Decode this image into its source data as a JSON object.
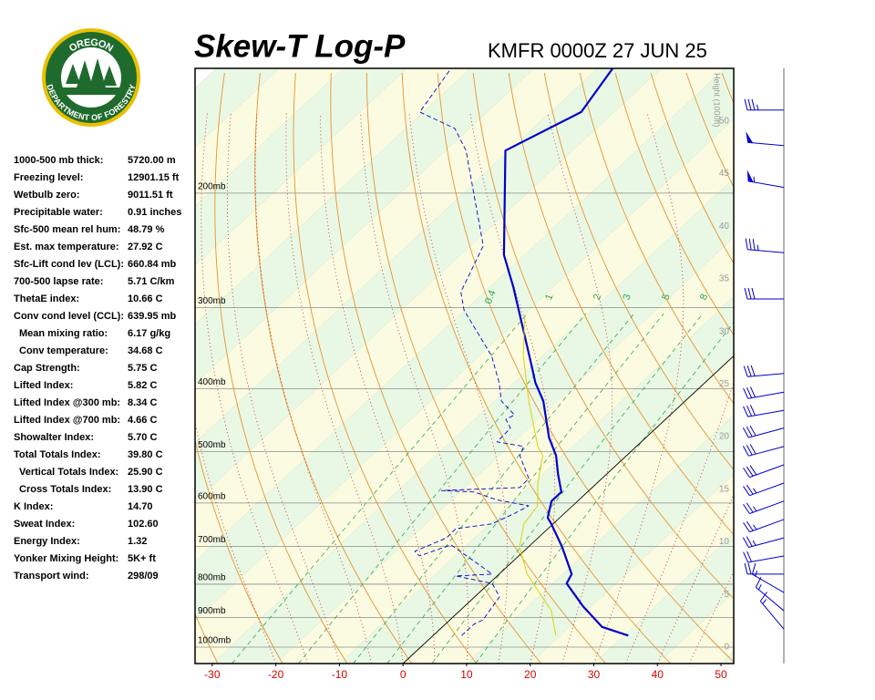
{
  "logo": {
    "top": "OREGON",
    "bottom": "DEPARTMENT OF FORESTRY"
  },
  "indices": [
    [
      "1000-500 mb thick:",
      "5720.00 m"
    ],
    [
      "Freezing level:",
      "12901.15 ft"
    ],
    [
      "Wetbulb zero:",
      "9011.51 ft"
    ],
    [
      "Precipitable water:",
      "0.91 inches"
    ],
    [
      "Sfc-500 mean rel hum:",
      "48.79 %"
    ],
    [
      "Est. max temperature:",
      "27.92 C"
    ],
    [
      "Sfc-Lift cond lev (LCL):",
      "660.84 mb"
    ],
    [
      "700-500 lapse rate:",
      "5.71 C/km"
    ],
    [
      "ThetaE index:",
      "10.66 C"
    ],
    [
      "Conv cond level (CCL):",
      "639.95 mb"
    ],
    [
      "Mean mixing ratio:",
      "6.17 g/kg"
    ],
    [
      "Conv temperature:",
      "34.68 C"
    ],
    [
      "Cap Strength:",
      "5.75 C"
    ],
    [
      "Lifted Index:",
      "5.82 C"
    ],
    [
      "Lifted Index @300 mb:",
      "8.34 C"
    ],
    [
      "Lifted Index @700 mb:",
      "4.66 C"
    ],
    [
      "Showalter Index:",
      "5.70 C"
    ],
    [
      "Total Totals Index:",
      "39.80 C"
    ],
    [
      "Vertical Totals Index:",
      "25.90 C"
    ],
    [
      "Cross Totals Index:",
      "13.90 C"
    ],
    [
      "K Index:",
      "14.70"
    ],
    [
      "Sweat Index:",
      "102.60"
    ],
    [
      "Energy Index:",
      "1.32"
    ],
    [
      "Yonker Mixing Height:",
      "5K+ ft"
    ],
    [
      "Transport wind:",
      "298/09"
    ]
  ],
  "chart_data": {
    "type": "skewt",
    "title": "Skew-T Log-P",
    "subtitle": "KMFR 0000Z 27 JUN 25",
    "xlim": [
      -32.7,
      52.0
    ],
    "xticks": [
      -30,
      -20,
      -10,
      0,
      10,
      20,
      30,
      40,
      50
    ],
    "ylim": [
      1060,
      128.5
    ],
    "log_y": true,
    "yticks": [
      {
        "value": 200,
        "label": "200mb"
      },
      {
        "value": 300,
        "label": "300mb"
      },
      {
        "value": 400,
        "label": "400mb"
      },
      {
        "value": 500,
        "label": "500mb"
      },
      {
        "value": 600,
        "label": "600mb"
      },
      {
        "value": 700,
        "label": "700mb"
      },
      {
        "value": 800,
        "label": "800mb"
      },
      {
        "value": 900,
        "label": "900mb"
      },
      {
        "value": 1000,
        "label": "1000mb"
      }
    ],
    "y2label": "Height (1000ft)",
    "y2lim": [
      -1.56,
      55.0
    ],
    "y2ticks": [
      0,
      5,
      10,
      15,
      20,
      25,
      30,
      35,
      40,
      45,
      50
    ],
    "mixing_ratios": [
      0.4,
      1,
      2,
      3,
      5,
      8
    ],
    "series": [
      {
        "color": "#0000cc",
        "dash": "none",
        "width": 2.2,
        "pressure": [
          960,
          931,
          865,
          798,
          772,
          701,
          646,
          632,
          596,
          577,
          541,
          507,
          476,
          418,
          392,
          367,
          303,
          279,
          249,
          172,
          150,
          128
        ],
        "values": [
          30.7,
          25.1,
          18.6,
          12.2,
          11.4,
          5.3,
          -0.3,
          -1.9,
          -4.1,
          -4.1,
          -7.7,
          -11.1,
          -15.2,
          -22.3,
          -26.6,
          -30.4,
          -41.5,
          -46.3,
          -53.2,
          -70.6,
          -65.2,
          -67.7
        ]
      },
      {
        "color": "#0000cc",
        "dash": "5 3",
        "width": 0.9,
        "pressure": [
          960,
          922,
          908,
          837,
          798,
          777,
          772,
          712,
          696,
          724,
          712,
          679,
          657,
          646,
          622,
          606,
          593,
          577,
          574,
          568,
          550,
          507,
          491,
          483,
          460,
          446,
          439,
          418,
          392,
          356,
          303,
          284,
          241,
          172,
          159,
          150,
          128
        ],
        "values": [
          4.5,
          4.5,
          5.2,
          3.9,
          0.5,
          -6.5,
          -1.1,
          -10.0,
          -12.5,
          -15.6,
          -17.1,
          -14.4,
          -14.5,
          -9.6,
          -7.8,
          -6.9,
          -13.0,
          -17.8,
          -23.2,
          -11.4,
          -11.5,
          -16.8,
          -17.7,
          -22.7,
          -22.9,
          -25.1,
          -24.5,
          -28.9,
          -32.3,
          -38.1,
          -50.1,
          -53.7,
          -58.0,
          -76.8,
          -82.3,
          -90.6,
          -93.1
        ]
      },
      {
        "color": "#e0d000",
        "dash": "none",
        "width": 1,
        "pressure": [
          960,
          879,
          772,
          701,
          646,
          606,
          559,
          507,
          491,
          418,
          356,
          312
        ],
        "values": [
          19.3,
          14.4,
          4.4,
          -1.4,
          -4.6,
          -5.5,
          -9.3,
          -13.2,
          -15.5,
          -24.6,
          -33.1,
          -39.2
        ]
      }
    ],
    "winds": {
      "pressure": [
        149,
        169,
        196,
        247,
        291,
        379,
        405,
        432,
        460,
        491,
        524,
        559,
        596,
        636,
        679,
        724,
        772,
        824,
        879,
        938
      ],
      "direction": [
        270,
        275,
        280,
        275,
        270,
        265,
        260,
        260,
        255,
        255,
        250,
        250,
        250,
        250,
        255,
        260,
        270,
        300,
        310,
        320
      ],
      "speed": [
        35,
        50,
        55,
        35,
        30,
        30,
        30,
        30,
        30,
        30,
        30,
        25,
        25,
        25,
        25,
        20,
        20,
        15,
        15,
        15
      ]
    }
  }
}
